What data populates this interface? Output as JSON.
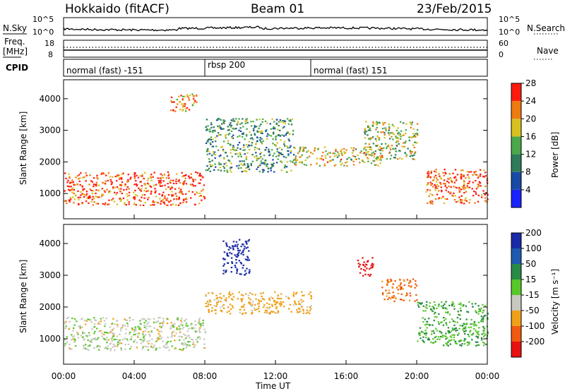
{
  "header": {
    "station": "Hokkaido (fitACF)",
    "beam": "Beam 01",
    "date": "23/Feb/2015"
  },
  "nsky_panel": {
    "left_label": "N.Sky",
    "right_label": "N.Search",
    "left_ticks": [
      "10^5",
      "10^0"
    ],
    "right_ticks": [
      "10^5",
      "10^0"
    ]
  },
  "freq_panel": {
    "left_label_line1": "Freq.",
    "left_label_line2": "[MHz]",
    "left_ticks": [
      "18",
      "8"
    ],
    "right_label": "Nave",
    "right_ticks": [
      "60",
      "0"
    ]
  },
  "cpid_panel": {
    "label": "CPID",
    "segments": [
      {
        "label": "normal (fast) -151",
        "start": 0,
        "end": 8
      },
      {
        "label": "rbsp 200",
        "start": 8,
        "end": 14
      },
      {
        "label": "normal (fast) 151",
        "start": 14,
        "end": 24
      }
    ]
  },
  "time_axis": {
    "label": "Time UT",
    "ticks": [
      "00:00",
      "04:00",
      "08:00",
      "12:00",
      "16:00",
      "20:00",
      "00:00"
    ],
    "tick_hours": [
      0,
      4,
      8,
      12,
      16,
      20,
      24
    ]
  },
  "range_axis": {
    "label": "Slant Range [km]",
    "ticks": [
      "1000",
      "2000",
      "3000",
      "4000"
    ],
    "tick_values": [
      1000,
      2000,
      3000,
      4000
    ],
    "range": [
      200,
      4600
    ]
  },
  "power_colorbar": {
    "label": "Power [dB]",
    "ticks": [
      "4",
      "8",
      "12",
      "16",
      "20",
      "24",
      "28"
    ],
    "colors": [
      "#1a22ff",
      "#1a4aa8",
      "#2f7a5a",
      "#4aa84a",
      "#d8c020",
      "#ee7a10",
      "#ff1a10"
    ]
  },
  "velocity_colorbar": {
    "label": "Velocity [m s⁻¹]",
    "ticks": [
      "200",
      "100",
      "50",
      "15",
      "-15",
      "-50",
      "-100",
      "-200"
    ],
    "colors": [
      "#1a2aa8",
      "#1e5ab0",
      "#2a8a48",
      "#58c828",
      "#c8c8c0",
      "#f0a018",
      "#f05a10",
      "#e81010"
    ]
  },
  "chart_data": {
    "type": "heatmap",
    "title": "Hokkaido (fitACF)  Beam 01  23/Feb/2015",
    "xlabel": "Time UT",
    "ylabel": "Slant Range [km]",
    "xlim_hours": [
      0,
      24
    ],
    "ylim_km": [
      200,
      4600
    ],
    "panels": [
      {
        "name": "Power [dB]",
        "scale": [
          0,
          30
        ],
        "echo_regions": [
          {
            "t": [
              0,
              8
            ],
            "range_km": [
              650,
              1700
            ],
            "power_db": 26
          },
          {
            "t": [
              8,
              13
            ],
            "range_km": [
              1700,
              3400
            ],
            "power_db": 14
          },
          {
            "t": [
              13,
              18
            ],
            "range_km": [
              1900,
              2500
            ],
            "power_db": 20
          },
          {
            "t": [
              17,
              20
            ],
            "range_km": [
              2100,
              3300
            ],
            "power_db": 18
          },
          {
            "t": [
              20.5,
              24
            ],
            "range_km": [
              700,
              1800
            ],
            "power_db": 26
          },
          {
            "t": [
              6,
              7.5
            ],
            "range_km": [
              3600,
              4200
            ],
            "power_db": 24
          }
        ]
      },
      {
        "name": "Velocity [m s^-1]",
        "scale": [
          -200,
          200
        ],
        "echo_regions": [
          {
            "t": [
              0,
              8
            ],
            "range_km": [
              650,
              1700
            ],
            "velocity": 0
          },
          {
            "t": [
              9,
              10.5
            ],
            "range_km": [
              3000,
              4200
            ],
            "velocity": 200
          },
          {
            "t": [
              8,
              14
            ],
            "range_km": [
              1800,
              2500
            ],
            "velocity": -30
          },
          {
            "t": [
              16.5,
              17.5
            ],
            "range_km": [
              3000,
              3600
            ],
            "velocity": -200
          },
          {
            "t": [
              18,
              20
            ],
            "range_km": [
              2200,
              2900
            ],
            "velocity": -60
          },
          {
            "t": [
              20,
              24
            ],
            "range_km": [
              800,
              2200
            ],
            "velocity": 30
          }
        ]
      }
    ]
  }
}
